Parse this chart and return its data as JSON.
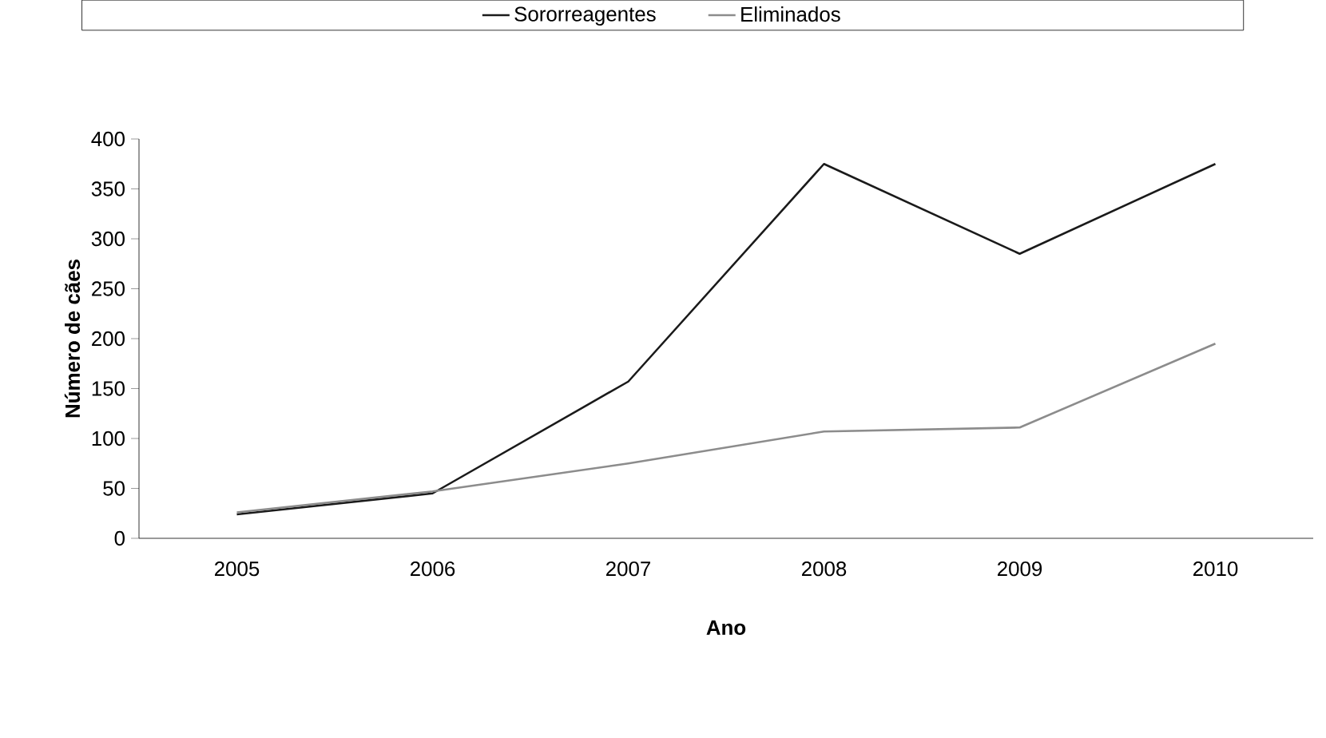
{
  "chart_data": {
    "type": "line",
    "xlabel": "Ano",
    "ylabel": "Número de cães",
    "categories": [
      "2005",
      "2006",
      "2007",
      "2008",
      "2009",
      "2010"
    ],
    "series": [
      {
        "name": "Sororreagentes",
        "color": "#1a1a1a",
        "values": [
          24,
          45,
          157,
          375,
          285,
          375
        ]
      },
      {
        "name": "Eliminados",
        "color": "#8c8c8c",
        "values": [
          26,
          47,
          75,
          107,
          111,
          195
        ]
      }
    ],
    "ylim": [
      0,
      400
    ],
    "yticks": [
      0,
      50,
      100,
      150,
      200,
      250,
      300,
      350,
      400
    ],
    "grid": false,
    "legend": "top",
    "marker": "none",
    "line_style": "solid"
  }
}
